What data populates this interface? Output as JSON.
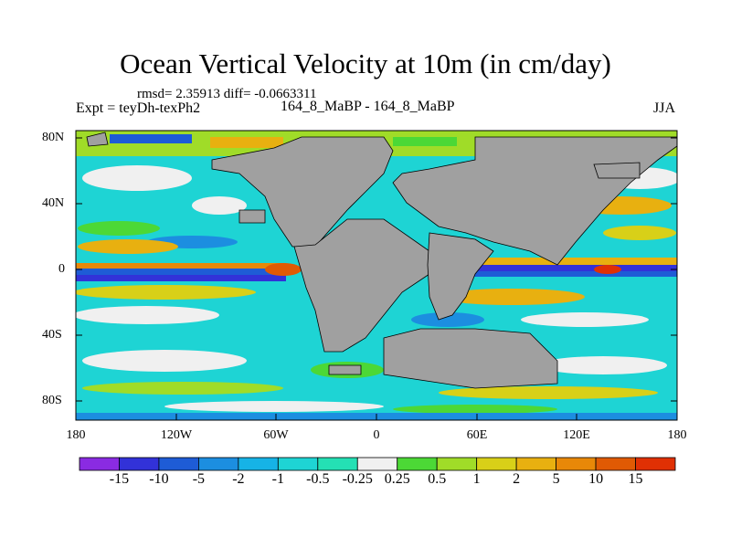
{
  "title": "Ocean Vertical Velocity at 10m (in cm/day)",
  "stats": "rmsd= 2.35913 diff= -0.0663311",
  "left_label": "Expt = teyDh-texPh2",
  "center_label": "164_8_MaBP - 164_8_MaBP",
  "right_label": "JJA",
  "lat_ticks": [
    "80N",
    "40N",
    "0",
    "40S",
    "80S"
  ],
  "lon_ticks": [
    "180",
    "120W",
    "60W",
    "0",
    "60E",
    "120E",
    "180"
  ],
  "colorbar": {
    "labels": [
      "-15",
      "-10",
      "-5",
      "-2",
      "-1",
      "-0.5",
      "-0.25",
      "0.25",
      "0.5",
      "1",
      "2",
      "5",
      "10",
      "15"
    ],
    "colors": [
      "#8a2be2",
      "#3232d8",
      "#1e5cd6",
      "#1c8ee0",
      "#16b3e6",
      "#1ed4d4",
      "#24e0b4",
      "#f0f0f0",
      "#4cd836",
      "#a0dc28",
      "#d8d018",
      "#e8b010",
      "#e88808",
      "#e05a04",
      "#e03004"
    ]
  },
  "land_color": "#a0a0a0"
}
